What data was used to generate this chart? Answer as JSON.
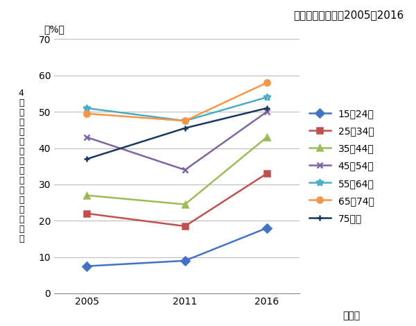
{
  "title": "歯科疾患実態調査2005～2016",
  "xlabel": "（年）",
  "ylabel_top": "（%）",
  "ylabel_chars": [
    "4",
    "㎜",
    "以",
    "上",
    "の",
    "歯",
    "周",
    "ポ",
    "ケ",
    "ッ",
    "ト",
    "保",
    "有",
    "者",
    "割",
    "合"
  ],
  "x": [
    2005,
    2011,
    2016
  ],
  "series": [
    {
      "label": "15～24歳",
      "values": [
        7.5,
        9.0,
        18.0
      ],
      "color": "#4472C4",
      "marker": "D"
    },
    {
      "label": "25～34歳",
      "values": [
        22.0,
        18.5,
        33.0
      ],
      "color": "#C0504D",
      "marker": "s"
    },
    {
      "label": "35～44歳",
      "values": [
        27.0,
        24.5,
        43.0
      ],
      "color": "#9BBB59",
      "marker": "^"
    },
    {
      "label": "45～54歳",
      "values": [
        43.0,
        34.0,
        50.0
      ],
      "color": "#8064A2",
      "marker": "x"
    },
    {
      "label": "55～64歳",
      "values": [
        51.0,
        47.5,
        54.0
      ],
      "color": "#4BACC6",
      "marker": "*"
    },
    {
      "label": "65～74歳",
      "values": [
        49.5,
        47.5,
        58.0
      ],
      "color": "#F79646",
      "marker": "o"
    },
    {
      "label": "75歳～",
      "values": [
        37.0,
        45.5,
        51.0
      ],
      "color": "#17375E",
      "marker": "+"
    }
  ],
  "ylim": [
    0,
    70
  ],
  "yticks": [
    0,
    10,
    20,
    30,
    40,
    50,
    60,
    70
  ],
  "xticks": [
    2005,
    2011,
    2016
  ],
  "background_color": "#ffffff",
  "grid_color": "#bbbbbb",
  "title_fontsize": 11,
  "tick_fontsize": 10,
  "legend_fontsize": 10
}
